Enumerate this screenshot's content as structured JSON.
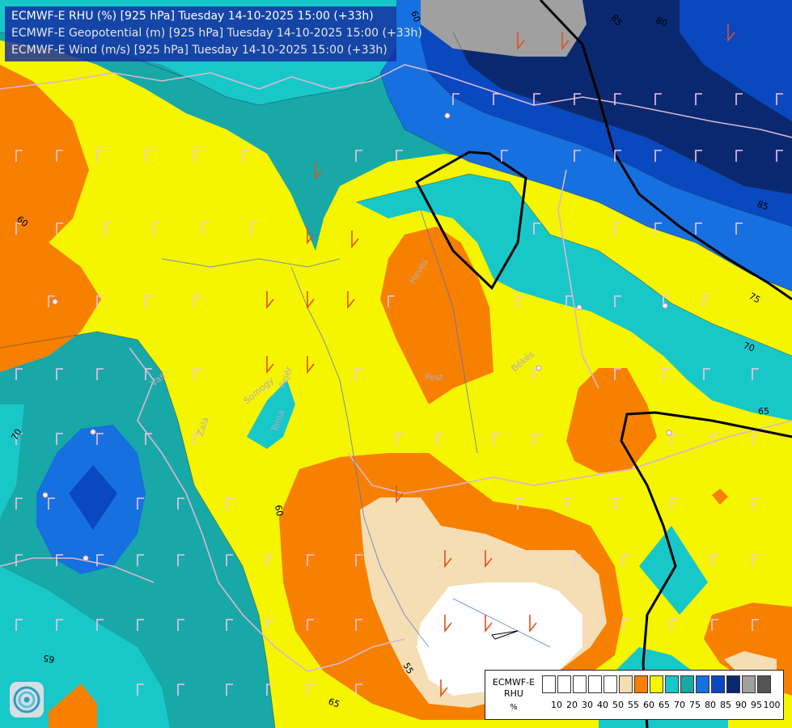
{
  "header": {
    "line1": "ECMWF-E RHU (%) [925 hPa] Tuesday 14-10-2025 15:00 (+33h)",
    "line2": "ECMWF-E Geopotential (m) [925 hPa] Tuesday 14-10-2025 15:00 (+33h)",
    "line3": "ECMWF-E Wind (m/s) [925 hPa] Tuesday 14-10-2025 15:00 (+33h)"
  },
  "contour_labels": [
    "60",
    "80",
    "85",
    "85",
    "75",
    "70",
    "65",
    "60",
    "70",
    "65",
    "55",
    "60",
    "65"
  ],
  "place_labels": [
    "Heves",
    "Pest",
    "Békés",
    "Vas",
    "Zala",
    "Somogy",
    "Fejér",
    "Tolna"
  ],
  "legend": {
    "title_line1": "ECMWF-E",
    "title_line2": "RHU",
    "unit": "%",
    "ticks": [
      "10",
      "20",
      "30",
      "40",
      "50",
      "55",
      "60",
      "65",
      "70",
      "75",
      "80",
      "85",
      "90",
      "95",
      "100"
    ],
    "colors": [
      "#ffffff",
      "#ffffff",
      "#ffffff",
      "#ffffff",
      "#ffffff",
      "#f5deb3",
      "#f88000",
      "#f5f500",
      "#18c8c8",
      "#18a8a8",
      "#1670e0",
      "#0a48c0",
      "#0a2870",
      "#a0a0a0",
      "#555555"
    ]
  },
  "colors": {
    "rh_55_60": "#f5deb3",
    "rh_60_65": "#f88000",
    "rh_65_70": "#f5f500",
    "rh_70_75": "#18c8c8",
    "rh_75_80": "#18a8a8",
    "rh_80_85": "#1670e0",
    "rh_85_90": "#0a48c0",
    "rh_90_95": "#0a2870",
    "rh_95_100": "#a0a0a0",
    "geopotential_line": "#000000",
    "border_line": "#d8b8d0",
    "river_line": "#4a6ad0"
  }
}
